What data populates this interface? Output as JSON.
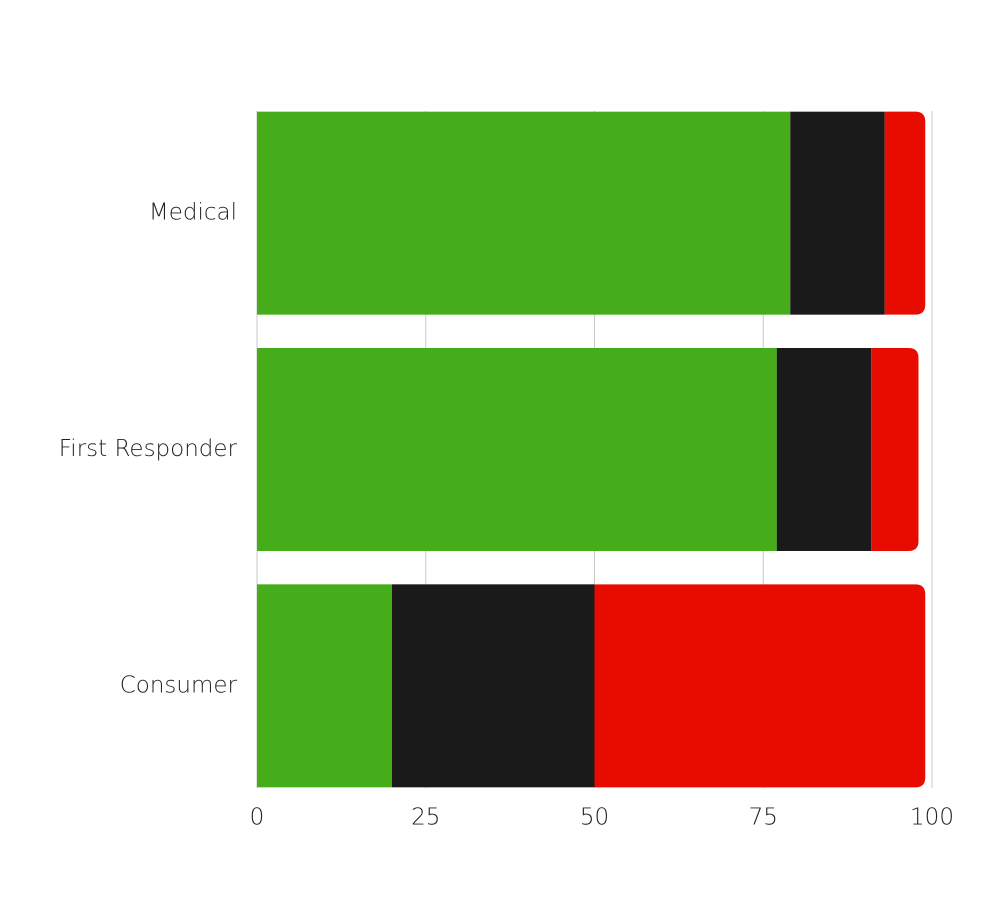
{
  "chart_data": {
    "type": "stacked-barh",
    "categories": [
      "Medical",
      "First Responder",
      "Consumer"
    ],
    "series": [
      {
        "color": "#46ad1a",
        "values": [
          79,
          77,
          20
        ]
      },
      {
        "color": "#1a1a1a",
        "values": [
          14,
          14,
          30
        ]
      },
      {
        "color": "#e80c00",
        "values": [
          6,
          7,
          49
        ]
      }
    ],
    "xlim": [
      0,
      100
    ],
    "xticks": [
      0,
      25,
      50,
      75,
      100
    ],
    "grid": true
  }
}
